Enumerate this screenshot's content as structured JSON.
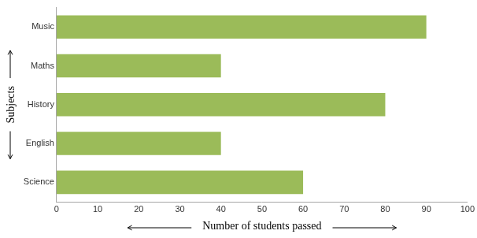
{
  "chart_data": {
    "type": "bar",
    "orientation": "horizontal",
    "categories": [
      "Music",
      "Maths",
      "History",
      "English",
      "Science"
    ],
    "values": [
      90,
      40,
      80,
      40,
      60
    ],
    "color": "#9bbb59",
    "x_label": "Number of students passed",
    "y_label": "Subjects",
    "xlim": [
      0,
      100
    ],
    "xticks": [
      0,
      10,
      20,
      30,
      40,
      50,
      60,
      70,
      80,
      90,
      100
    ],
    "grid": false
  }
}
